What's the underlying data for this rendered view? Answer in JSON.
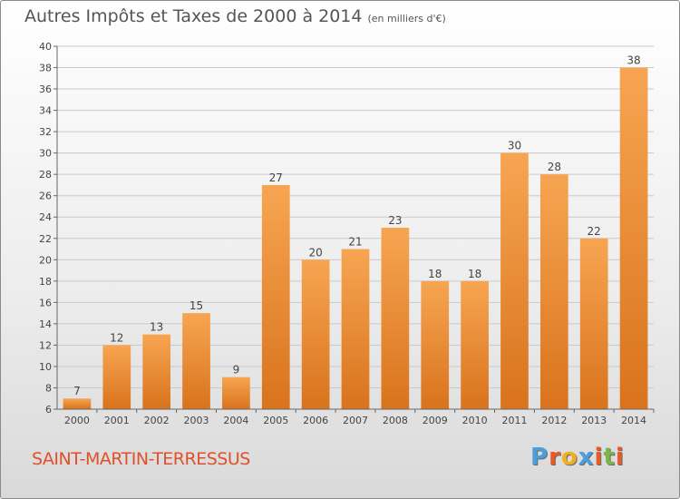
{
  "title": {
    "main": "Autres Impôts et Taxes de 2000 à 2014",
    "unit": "(en milliers d'€)"
  },
  "footer": {
    "place": "SAINT-MARTIN-TERRESSUS",
    "logo_letters": [
      "P",
      "r",
      "o",
      "x",
      "i",
      "t",
      "i"
    ],
    "logo_colors": [
      "#4a9fdc",
      "#e85a2a",
      "#f0b020",
      "#4a9fdc",
      "#e85a2a",
      "#7ab648",
      "#e85a2a"
    ]
  },
  "colors": {
    "bar_top": "#f7a552",
    "bar_bottom": "#d9731c",
    "grid": "#c9c9c9",
    "axis": "#666666"
  },
  "chart_data": {
    "type": "bar",
    "title": "Autres Impôts et Taxes de 2000 à 2014",
    "subtitle": "(en milliers d'€)",
    "xlabel": "",
    "ylabel": "",
    "categories": [
      "2000",
      "2001",
      "2002",
      "2003",
      "2004",
      "2005",
      "2006",
      "2007",
      "2008",
      "2009",
      "2010",
      "2011",
      "2012",
      "2013",
      "2014"
    ],
    "values": [
      7,
      12,
      13,
      15,
      9,
      27,
      20,
      21,
      23,
      18,
      18,
      30,
      28,
      22,
      38
    ],
    "ylim": [
      6,
      40
    ],
    "yticks": [
      6,
      8,
      10,
      12,
      14,
      16,
      18,
      20,
      22,
      24,
      26,
      28,
      30,
      32,
      34,
      36,
      38,
      40
    ],
    "grid": true,
    "data_labels": true
  }
}
